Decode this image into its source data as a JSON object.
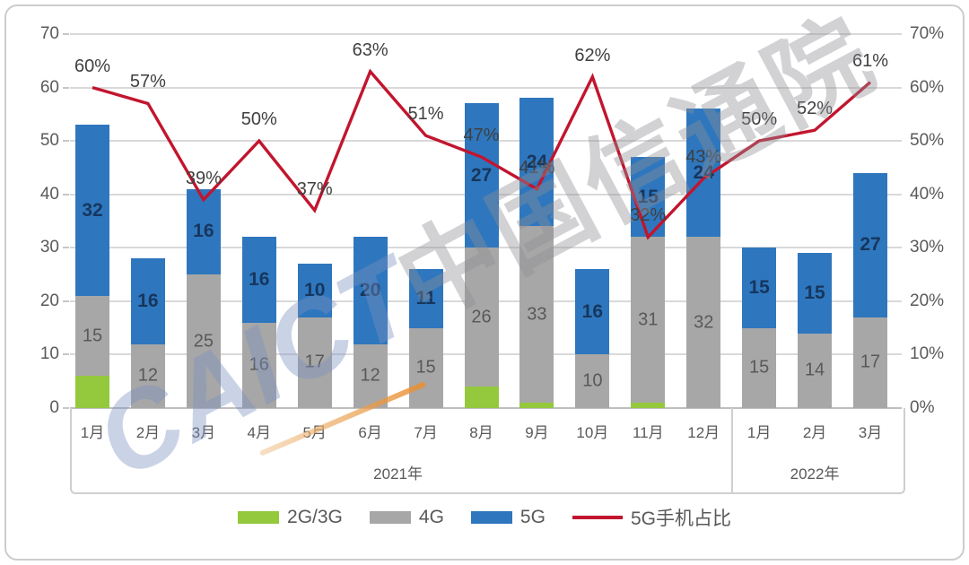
{
  "watermark": {
    "latin": "CAICT",
    "cjk": "中国信通院"
  },
  "legend": [
    {
      "label": "2G/3G",
      "color": "#94c83d",
      "type": "swatch"
    },
    {
      "label": "4G",
      "color": "#a7a7a7",
      "type": "swatch"
    },
    {
      "label": "5G",
      "color": "#2e77be",
      "type": "swatch"
    },
    {
      "label": "5G手机占比",
      "color": "#c2152e",
      "type": "line"
    }
  ],
  "chart_data": {
    "type": "bar",
    "subtype": "stacked-bars-with-line",
    "title": "",
    "xlabel": "",
    "ylabel": "",
    "grid": true,
    "legend_position": "bottom",
    "categories": [
      "1月",
      "2月",
      "3月",
      "4月",
      "5月",
      "6月",
      "7月",
      "8月",
      "9月",
      "10月",
      "11月",
      "12月",
      "1月",
      "2月",
      "3月"
    ],
    "year_groups": [
      {
        "label": "2021年",
        "count": 12
      },
      {
        "label": "2022年",
        "count": 3
      }
    ],
    "left_axis": {
      "min": 0,
      "max": 70,
      "step": 10,
      "tick_labels": [
        "0",
        "10",
        "20",
        "30",
        "40",
        "50",
        "60",
        "70"
      ]
    },
    "right_axis": {
      "min": 0,
      "max": 70,
      "step": 10,
      "tick_labels": [
        "0%",
        "10%",
        "20%",
        "30%",
        "40%",
        "50%",
        "60%",
        "70%"
      ]
    },
    "series": [
      {
        "name": "2G/3G",
        "color": "#94c83d",
        "labels_visible": false,
        "label_color": "#595959",
        "values": [
          6,
          0,
          0,
          0,
          0,
          0,
          0,
          4,
          1,
          0,
          1,
          0,
          0,
          0,
          0
        ]
      },
      {
        "name": "4G",
        "color": "#a7a7a7",
        "labels_visible": true,
        "label_color": "#595959",
        "values": [
          15,
          12,
          25,
          16,
          17,
          12,
          15,
          26,
          33,
          10,
          31,
          32,
          15,
          14,
          17
        ]
      },
      {
        "name": "5G",
        "color": "#2e77be",
        "labels_visible": true,
        "label_color": "#17365d",
        "labels_bold": true,
        "values": [
          32,
          16,
          16,
          16,
          10,
          20,
          11,
          27,
          24,
          16,
          15,
          24,
          15,
          15,
          27
        ]
      }
    ],
    "line": {
      "name": "5G手机占比",
      "color": "#c2152e",
      "label_suffix": "%",
      "label_color": "#3f3f3f",
      "values": [
        60,
        57,
        39,
        50,
        37,
        63,
        51,
        47,
        41,
        62,
        32,
        43,
        50,
        52,
        61
      ]
    }
  }
}
